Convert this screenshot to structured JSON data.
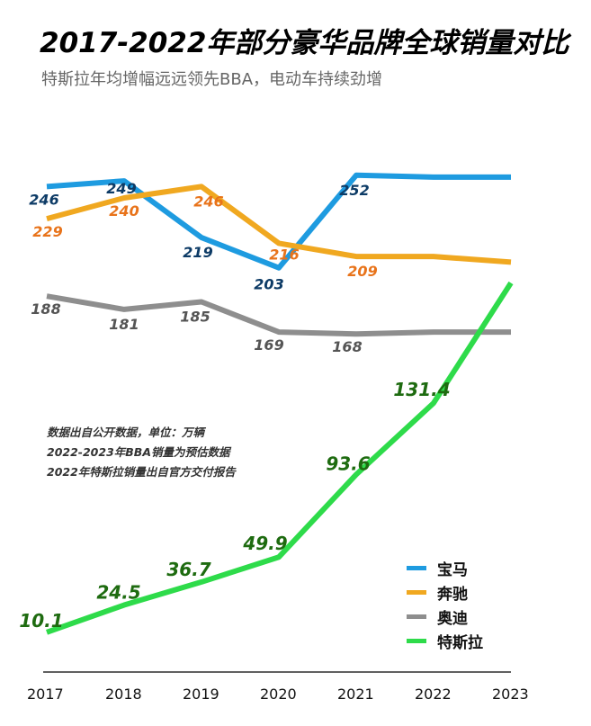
{
  "header": {
    "title": "2017-2022年部分豪华品牌全球销量对比",
    "subtitle": "特斯拉年均增幅远远领先BBA，电动车持续劲增"
  },
  "notes": [
    "数据出自公开数据，单位：万辆",
    "2022-2023年BBA销量为预估数据",
    "2022年特斯拉销量出自官方交付报告"
  ],
  "chart_data": {
    "type": "line",
    "x": [
      "2017",
      "2018",
      "2019",
      "2020",
      "2021",
      "2022",
      "2023"
    ],
    "ylim": [
      0,
      260
    ],
    "grid": false,
    "legend_position": "bottom-right",
    "series": [
      {
        "name": "宝马",
        "color": "#1E9BE0",
        "values": [
          246,
          249,
          219,
          203,
          252,
          251,
          251
        ],
        "labels": [
          "246",
          "249",
          "219",
          "203",
          "252",
          "",
          ""
        ],
        "label_color": "#0D3B66"
      },
      {
        "name": "奔驰",
        "color": "#F0A820",
        "values": [
          229,
          240,
          246,
          216,
          209,
          209,
          206
        ],
        "labels": [
          "229",
          "240",
          "246",
          "216",
          "209",
          "",
          ""
        ],
        "label_color": "#E8731A"
      },
      {
        "name": "奥迪",
        "color": "#8E8E8E",
        "values": [
          188,
          181,
          185,
          169,
          168,
          169,
          169
        ],
        "labels": [
          "188",
          "181",
          "185",
          "169",
          "168",
          "",
          ""
        ],
        "label_color": "#555555"
      },
      {
        "name": "特斯拉",
        "color": "#2EDB4A",
        "values": [
          10.1,
          24.5,
          36.7,
          49.9,
          93.6,
          131.4,
          195
        ],
        "labels": [
          "10.1",
          "24.5",
          "36.7",
          "49.9",
          "93.6",
          "131.4",
          ""
        ],
        "label_color": "#1E6B10"
      }
    ]
  }
}
